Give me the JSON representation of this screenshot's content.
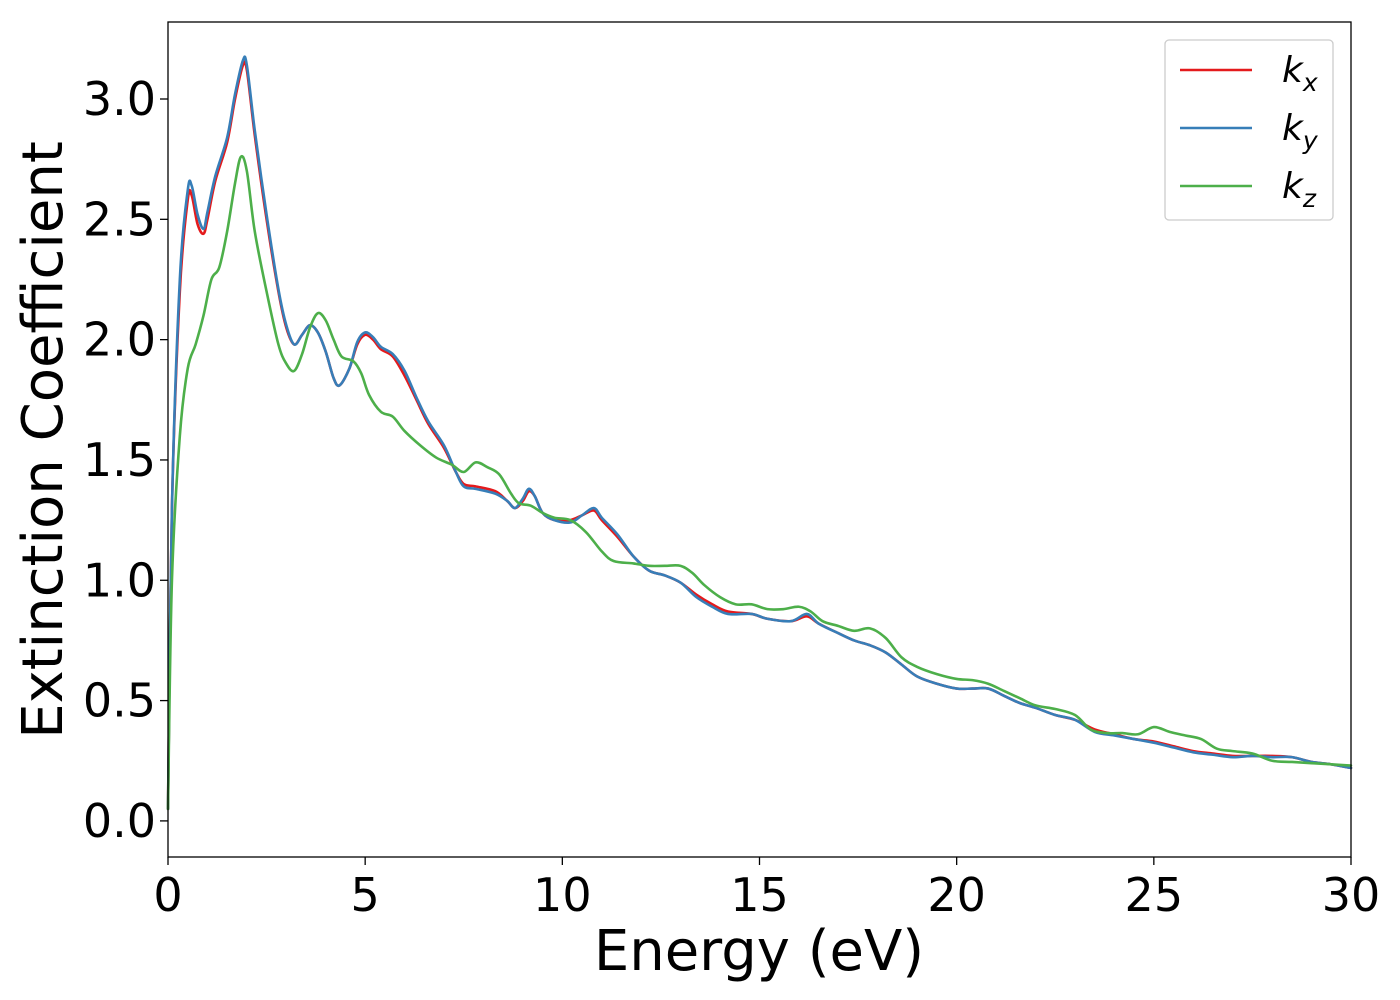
{
  "chart_data": {
    "type": "line",
    "title": "",
    "xlabel": "Energy (eV)",
    "ylabel": "Extinction Coefficient",
    "xlim": [
      0,
      30
    ],
    "ylim": [
      -0.15,
      3.32
    ],
    "xticks": [
      0,
      5,
      10,
      15,
      20,
      25,
      30
    ],
    "xtick_labels": [
      "0",
      "5",
      "10",
      "15",
      "20",
      "25",
      "30"
    ],
    "yticks": [
      0.0,
      0.5,
      1.0,
      1.5,
      2.0,
      2.5,
      3.0
    ],
    "ytick_labels": [
      "0.0",
      "0.5",
      "1.0",
      "1.5",
      "2.0",
      "2.5",
      "3.0"
    ],
    "grid": false,
    "legend_position": "top-right",
    "series": [
      {
        "name": "k_x",
        "label_main": "k",
        "label_sub": "x",
        "color": "#e41a1c",
        "points": [
          [
            0,
            0.05
          ],
          [
            0.1,
            1.3
          ],
          [
            0.3,
            2.2
          ],
          [
            0.5,
            2.58
          ],
          [
            0.6,
            2.6
          ],
          [
            0.75,
            2.48
          ],
          [
            0.9,
            2.44
          ],
          [
            1.0,
            2.5
          ],
          [
            1.2,
            2.66
          ],
          [
            1.5,
            2.82
          ],
          [
            1.7,
            3.0
          ],
          [
            1.9,
            3.14
          ],
          [
            2.0,
            3.12
          ],
          [
            2.2,
            2.85
          ],
          [
            2.5,
            2.5
          ],
          [
            2.8,
            2.2
          ],
          [
            3.0,
            2.05
          ],
          [
            3.2,
            1.98
          ],
          [
            3.4,
            2.02
          ],
          [
            3.6,
            2.06
          ],
          [
            3.8,
            2.03
          ],
          [
            4.0,
            1.95
          ],
          [
            4.2,
            1.84
          ],
          [
            4.35,
            1.81
          ],
          [
            4.6,
            1.88
          ],
          [
            4.8,
            1.98
          ],
          [
            5.0,
            2.02
          ],
          [
            5.2,
            2.0
          ],
          [
            5.4,
            1.96
          ],
          [
            5.7,
            1.93
          ],
          [
            6.0,
            1.85
          ],
          [
            6.3,
            1.75
          ],
          [
            6.6,
            1.65
          ],
          [
            7.0,
            1.55
          ],
          [
            7.3,
            1.45
          ],
          [
            7.5,
            1.4
          ],
          [
            7.8,
            1.39
          ],
          [
            8.3,
            1.37
          ],
          [
            8.6,
            1.33
          ],
          [
            8.8,
            1.3
          ],
          [
            9.0,
            1.33
          ],
          [
            9.15,
            1.37
          ],
          [
            9.3,
            1.35
          ],
          [
            9.5,
            1.28
          ],
          [
            9.8,
            1.25
          ],
          [
            10.2,
            1.25
          ],
          [
            10.5,
            1.27
          ],
          [
            10.8,
            1.29
          ],
          [
            11.0,
            1.25
          ],
          [
            11.4,
            1.18
          ],
          [
            11.8,
            1.1
          ],
          [
            12.2,
            1.04
          ],
          [
            12.6,
            1.02
          ],
          [
            13.0,
            0.99
          ],
          [
            13.4,
            0.94
          ],
          [
            13.8,
            0.9
          ],
          [
            14.2,
            0.87
          ],
          [
            14.8,
            0.86
          ],
          [
            15.2,
            0.84
          ],
          [
            15.8,
            0.83
          ],
          [
            16.2,
            0.85
          ],
          [
            16.5,
            0.82
          ],
          [
            17.0,
            0.78
          ],
          [
            17.4,
            0.75
          ],
          [
            17.8,
            0.73
          ],
          [
            18.2,
            0.7
          ],
          [
            18.6,
            0.65
          ],
          [
            19.0,
            0.6
          ],
          [
            19.5,
            0.57
          ],
          [
            20.0,
            0.55
          ],
          [
            20.4,
            0.55
          ],
          [
            20.8,
            0.55
          ],
          [
            21.2,
            0.52
          ],
          [
            21.6,
            0.49
          ],
          [
            22.0,
            0.47
          ],
          [
            22.5,
            0.44
          ],
          [
            23.0,
            0.42
          ],
          [
            23.5,
            0.38
          ],
          [
            24.0,
            0.36
          ],
          [
            24.5,
            0.34
          ],
          [
            25.0,
            0.33
          ],
          [
            25.5,
            0.31
          ],
          [
            26.0,
            0.29
          ],
          [
            26.5,
            0.28
          ],
          [
            27.0,
            0.27
          ],
          [
            27.5,
            0.27
          ],
          [
            28.0,
            0.27
          ],
          [
            28.5,
            0.265
          ],
          [
            29.0,
            0.245
          ],
          [
            29.5,
            0.235
          ],
          [
            30.0,
            0.22
          ]
        ]
      },
      {
        "name": "k_y",
        "label_main": "k",
        "label_sub": "y",
        "color": "#377eb8",
        "points": [
          [
            0,
            0.05
          ],
          [
            0.1,
            1.3
          ],
          [
            0.3,
            2.25
          ],
          [
            0.5,
            2.62
          ],
          [
            0.6,
            2.64
          ],
          [
            0.75,
            2.52
          ],
          [
            0.9,
            2.46
          ],
          [
            1.0,
            2.53
          ],
          [
            1.2,
            2.68
          ],
          [
            1.5,
            2.84
          ],
          [
            1.7,
            3.02
          ],
          [
            1.9,
            3.16
          ],
          [
            2.0,
            3.14
          ],
          [
            2.2,
            2.87
          ],
          [
            2.5,
            2.52
          ],
          [
            2.8,
            2.21
          ],
          [
            3.0,
            2.06
          ],
          [
            3.2,
            1.98
          ],
          [
            3.4,
            2.02
          ],
          [
            3.6,
            2.06
          ],
          [
            3.8,
            2.03
          ],
          [
            4.0,
            1.95
          ],
          [
            4.2,
            1.84
          ],
          [
            4.35,
            1.81
          ],
          [
            4.6,
            1.88
          ],
          [
            4.8,
            1.99
          ],
          [
            5.0,
            2.03
          ],
          [
            5.2,
            2.01
          ],
          [
            5.4,
            1.97
          ],
          [
            5.7,
            1.94
          ],
          [
            6.0,
            1.87
          ],
          [
            6.3,
            1.76
          ],
          [
            6.6,
            1.66
          ],
          [
            7.0,
            1.56
          ],
          [
            7.3,
            1.45
          ],
          [
            7.5,
            1.39
          ],
          [
            7.8,
            1.38
          ],
          [
            8.3,
            1.36
          ],
          [
            8.6,
            1.33
          ],
          [
            8.8,
            1.3
          ],
          [
            9.0,
            1.34
          ],
          [
            9.15,
            1.38
          ],
          [
            9.3,
            1.35
          ],
          [
            9.5,
            1.28
          ],
          [
            9.8,
            1.25
          ],
          [
            10.2,
            1.24
          ],
          [
            10.5,
            1.27
          ],
          [
            10.8,
            1.3
          ],
          [
            11.0,
            1.26
          ],
          [
            11.4,
            1.19
          ],
          [
            11.8,
            1.1
          ],
          [
            12.2,
            1.04
          ],
          [
            12.6,
            1.02
          ],
          [
            13.0,
            0.99
          ],
          [
            13.4,
            0.93
          ],
          [
            13.8,
            0.89
          ],
          [
            14.2,
            0.86
          ],
          [
            14.8,
            0.86
          ],
          [
            15.2,
            0.84
          ],
          [
            15.8,
            0.83
          ],
          [
            16.2,
            0.86
          ],
          [
            16.5,
            0.82
          ],
          [
            17.0,
            0.78
          ],
          [
            17.4,
            0.75
          ],
          [
            17.8,
            0.73
          ],
          [
            18.2,
            0.7
          ],
          [
            18.6,
            0.65
          ],
          [
            19.0,
            0.6
          ],
          [
            19.5,
            0.57
          ],
          [
            20.0,
            0.55
          ],
          [
            20.4,
            0.55
          ],
          [
            20.8,
            0.55
          ],
          [
            21.2,
            0.52
          ],
          [
            21.6,
            0.49
          ],
          [
            22.0,
            0.47
          ],
          [
            22.5,
            0.44
          ],
          [
            23.0,
            0.42
          ],
          [
            23.5,
            0.37
          ],
          [
            24.0,
            0.355
          ],
          [
            24.5,
            0.34
          ],
          [
            25.0,
            0.325
          ],
          [
            25.5,
            0.305
          ],
          [
            26.0,
            0.285
          ],
          [
            26.5,
            0.275
          ],
          [
            27.0,
            0.265
          ],
          [
            27.5,
            0.27
          ],
          [
            28.0,
            0.265
          ],
          [
            28.5,
            0.265
          ],
          [
            29.0,
            0.245
          ],
          [
            29.5,
            0.235
          ],
          [
            30.0,
            0.22
          ]
        ]
      },
      {
        "name": "k_z",
        "label_main": "k",
        "label_sub": "z",
        "color": "#4daf4a",
        "points": [
          [
            0,
            0.05
          ],
          [
            0.1,
            1.0
          ],
          [
            0.3,
            1.6
          ],
          [
            0.5,
            1.88
          ],
          [
            0.7,
            1.98
          ],
          [
            0.9,
            2.1
          ],
          [
            1.1,
            2.25
          ],
          [
            1.3,
            2.3
          ],
          [
            1.5,
            2.45
          ],
          [
            1.7,
            2.65
          ],
          [
            1.85,
            2.76
          ],
          [
            2.0,
            2.7
          ],
          [
            2.2,
            2.45
          ],
          [
            2.5,
            2.2
          ],
          [
            2.8,
            1.98
          ],
          [
            3.0,
            1.9
          ],
          [
            3.2,
            1.87
          ],
          [
            3.4,
            1.94
          ],
          [
            3.6,
            2.05
          ],
          [
            3.8,
            2.11
          ],
          [
            4.0,
            2.08
          ],
          [
            4.2,
            2.0
          ],
          [
            4.4,
            1.93
          ],
          [
            4.7,
            1.91
          ],
          [
            4.9,
            1.86
          ],
          [
            5.1,
            1.77
          ],
          [
            5.4,
            1.7
          ],
          [
            5.7,
            1.68
          ],
          [
            6.0,
            1.62
          ],
          [
            6.4,
            1.56
          ],
          [
            6.8,
            1.51
          ],
          [
            7.2,
            1.48
          ],
          [
            7.5,
            1.45
          ],
          [
            7.8,
            1.49
          ],
          [
            8.1,
            1.47
          ],
          [
            8.4,
            1.44
          ],
          [
            8.7,
            1.36
          ],
          [
            8.9,
            1.32
          ],
          [
            9.2,
            1.31
          ],
          [
            9.5,
            1.28
          ],
          [
            9.8,
            1.26
          ],
          [
            10.2,
            1.25
          ],
          [
            10.6,
            1.2
          ],
          [
            11.0,
            1.12
          ],
          [
            11.3,
            1.08
          ],
          [
            11.8,
            1.07
          ],
          [
            12.2,
            1.06
          ],
          [
            12.6,
            1.06
          ],
          [
            13.0,
            1.06
          ],
          [
            13.3,
            1.03
          ],
          [
            13.6,
            0.98
          ],
          [
            14.0,
            0.93
          ],
          [
            14.4,
            0.9
          ],
          [
            14.8,
            0.9
          ],
          [
            15.2,
            0.88
          ],
          [
            15.6,
            0.88
          ],
          [
            16.0,
            0.89
          ],
          [
            16.3,
            0.87
          ],
          [
            16.6,
            0.83
          ],
          [
            17.0,
            0.81
          ],
          [
            17.4,
            0.79
          ],
          [
            17.8,
            0.8
          ],
          [
            18.2,
            0.76
          ],
          [
            18.6,
            0.68
          ],
          [
            19.0,
            0.64
          ],
          [
            19.5,
            0.61
          ],
          [
            20.0,
            0.59
          ],
          [
            20.4,
            0.585
          ],
          [
            20.8,
            0.57
          ],
          [
            21.2,
            0.54
          ],
          [
            21.6,
            0.51
          ],
          [
            22.0,
            0.48
          ],
          [
            22.5,
            0.465
          ],
          [
            23.0,
            0.44
          ],
          [
            23.4,
            0.38
          ],
          [
            23.8,
            0.365
          ],
          [
            24.2,
            0.365
          ],
          [
            24.6,
            0.36
          ],
          [
            25.0,
            0.39
          ],
          [
            25.4,
            0.37
          ],
          [
            25.8,
            0.355
          ],
          [
            26.2,
            0.34
          ],
          [
            26.6,
            0.3
          ],
          [
            27.0,
            0.29
          ],
          [
            27.5,
            0.28
          ],
          [
            28.0,
            0.25
          ],
          [
            28.5,
            0.245
          ],
          [
            29.0,
            0.24
          ],
          [
            29.5,
            0.235
          ],
          [
            30.0,
            0.23
          ]
        ]
      }
    ]
  }
}
